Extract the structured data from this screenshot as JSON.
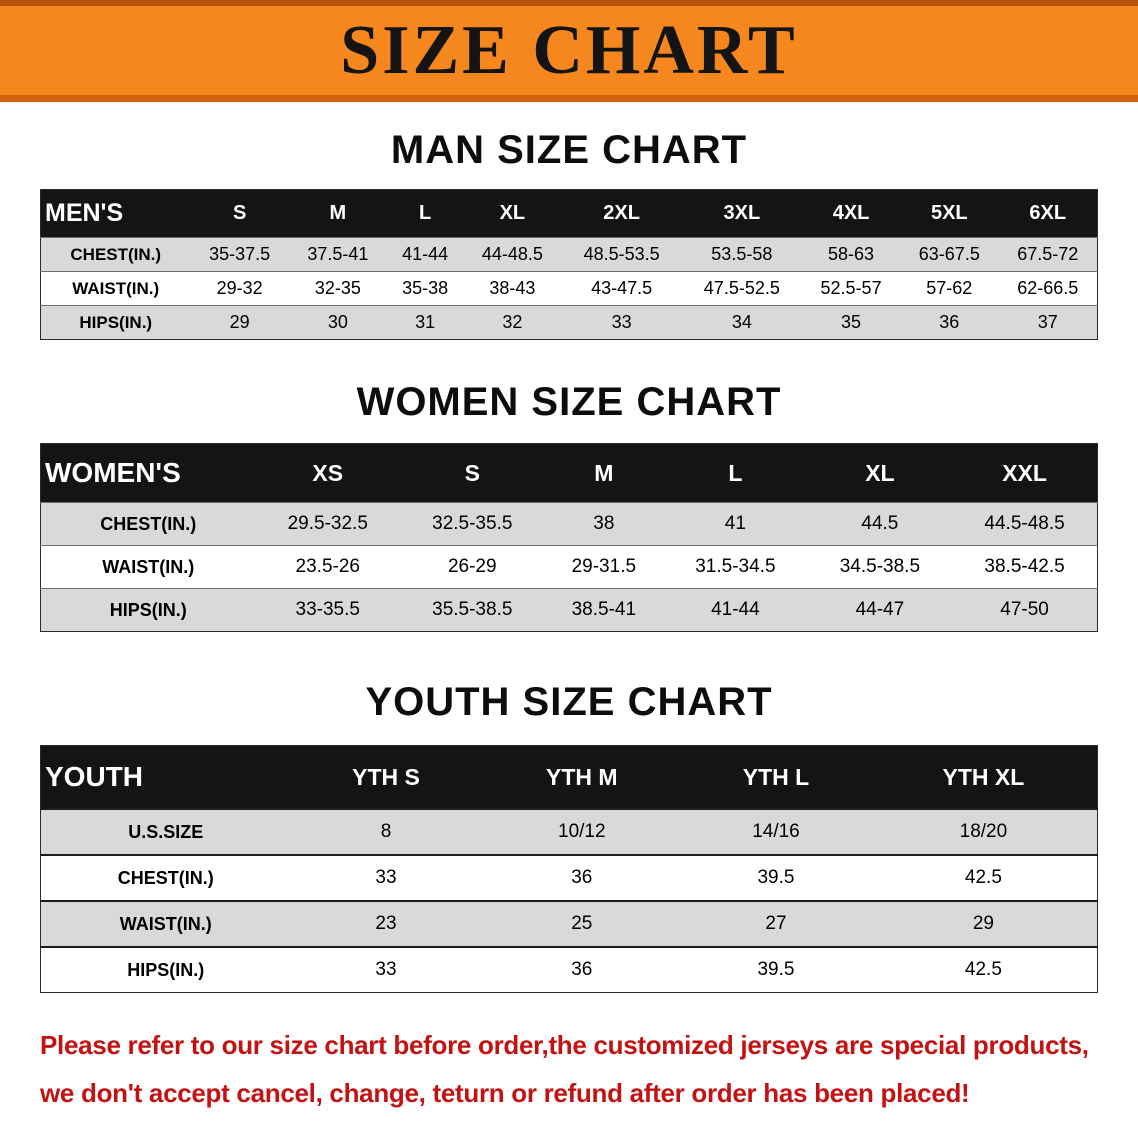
{
  "banner": {
    "title": "SIZE CHART"
  },
  "sections": [
    {
      "heading": "MAN SIZE CHART",
      "header_label": "MEN'S",
      "columns": [
        "S",
        "M",
        "L",
        "XL",
        "2XL",
        "3XL",
        "4XL",
        "5XL",
        "6XL"
      ],
      "rows": [
        {
          "label": "CHEST(IN.)",
          "values": [
            "35-37.5",
            "37.5-41",
            "41-44",
            "44-48.5",
            "48.5-53.5",
            "53.5-58",
            "58-63",
            "63-67.5",
            "67.5-72"
          ]
        },
        {
          "label": "WAIST(IN.)",
          "values": [
            "29-32",
            "32-35",
            "35-38",
            "38-43",
            "43-47.5",
            "47.5-52.5",
            "52.5-57",
            "57-62",
            "62-66.5"
          ]
        },
        {
          "label": "HIPS(IN.)",
          "values": [
            "29",
            "30",
            "31",
            "32",
            "33",
            "34",
            "35",
            "36",
            "37"
          ]
        }
      ]
    },
    {
      "heading": "WOMEN SIZE CHART",
      "header_label": "WOMEN'S",
      "columns": [
        "XS",
        "S",
        "M",
        "L",
        "XL",
        "XXL"
      ],
      "rows": [
        {
          "label": "CHEST(IN.)",
          "values": [
            "29.5-32.5",
            "32.5-35.5",
            "38",
            "41",
            "44.5",
            "44.5-48.5"
          ]
        },
        {
          "label": "WAIST(IN.)",
          "values": [
            "23.5-26",
            "26-29",
            "29-31.5",
            "31.5-34.5",
            "34.5-38.5",
            "38.5-42.5"
          ]
        },
        {
          "label": "HIPS(IN.)",
          "values": [
            "33-35.5",
            "35.5-38.5",
            "38.5-41",
            "41-44",
            "44-47",
            "47-50"
          ]
        }
      ]
    },
    {
      "heading": "YOUTH SIZE CHART",
      "header_label": "YOUTH",
      "columns": [
        "YTH S",
        "YTH M",
        "YTH L",
        "YTH XL"
      ],
      "rows": [
        {
          "label": "U.S.SIZE",
          "values": [
            "8",
            "10/12",
            "14/16",
            "18/20"
          ]
        },
        {
          "label": "CHEST(IN.)",
          "values": [
            "33",
            "36",
            "39.5",
            "42.5"
          ]
        },
        {
          "label": "WAIST(IN.)",
          "values": [
            "23",
            "25",
            "27",
            "29"
          ]
        },
        {
          "label": "HIPS(IN.)",
          "values": [
            "33",
            "36",
            "39.5",
            "42.5"
          ]
        }
      ]
    }
  ],
  "disclaimer": {
    "line1": "Please refer to our size chart before order,the customized jerseys are special products,",
    "line2": "we don't accept cancel, change, teturn or refund after order has been placed!"
  },
  "colors": {
    "banner_bg": "#f6871f",
    "banner_border_top": "#b5520c",
    "banner_border_bottom": "#d2600e",
    "table_header_bg": "#141414",
    "table_header_text": "#ffffff",
    "row_shade": "#d9d9d9",
    "disclaimer_text": "#c41212"
  }
}
